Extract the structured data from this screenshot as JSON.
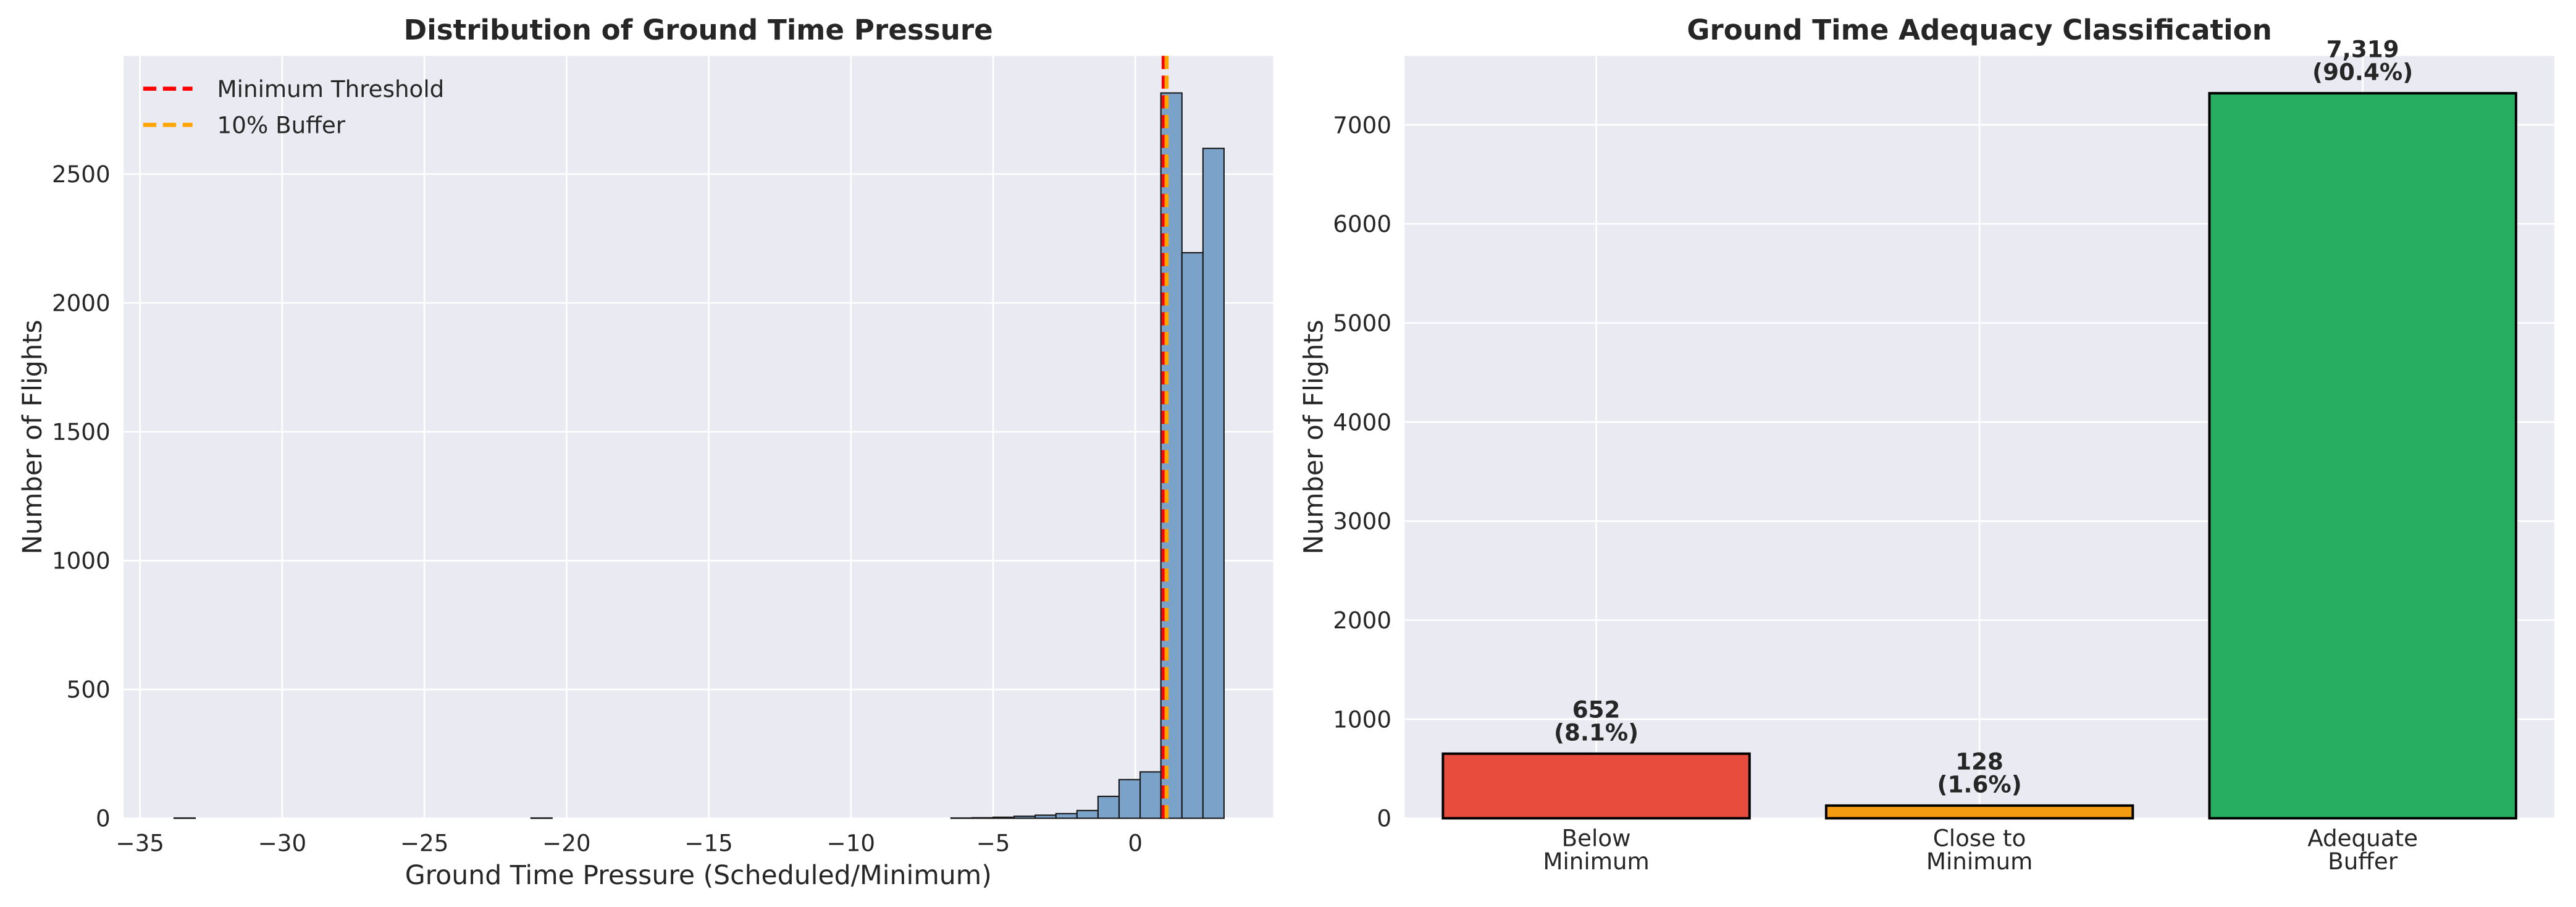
{
  "chart_data": [
    {
      "type": "histogram",
      "title": "Distribution of Ground Time Pressure",
      "xlabel": "Ground Time Pressure (Scheduled/Minimum)",
      "ylabel": "Number of Flights",
      "bins": [
        -33.8,
        -33.06,
        -32.32,
        -31.58,
        -30.85,
        -30.11,
        -29.37,
        -28.63,
        -27.89,
        -27.15,
        -26.42,
        -25.68,
        -24.94,
        -24.2,
        -23.46,
        -22.72,
        -21.99,
        -21.25,
        -20.51,
        -19.77,
        -19.03,
        -18.29,
        -17.56,
        -16.82,
        -16.08,
        -15.34,
        -14.6,
        -13.86,
        -13.12,
        -12.39,
        -11.65,
        -10.91,
        -10.17,
        -9.43,
        -8.69,
        -7.96,
        -7.22,
        -6.48,
        -5.74,
        -5.0,
        -4.26,
        -3.52,
        -2.79,
        -2.05,
        -1.31,
        -0.57,
        0.17,
        0.9,
        1.64,
        2.38,
        3.12
      ],
      "counts": [
        1,
        0,
        0,
        0,
        0,
        0,
        0,
        0,
        0,
        0,
        0,
        0,
        0,
        0,
        0,
        0,
        0,
        1,
        0,
        0,
        0,
        0,
        0,
        0,
        0,
        0,
        0,
        0,
        0,
        0,
        0,
        0,
        0,
        0,
        0,
        0,
        0,
        1,
        2,
        4,
        8,
        12,
        18,
        30,
        85,
        150,
        180,
        2815,
        2195,
        2600
      ],
      "color": "#7ba2c8",
      "vlines": [
        {
          "name": "Minimum Threshold",
          "x": 1.0,
          "color": "#ff0000"
        },
        {
          "name": "10% Buffer",
          "x": 1.1,
          "color": "#ffa500"
        }
      ],
      "legend": "upper left",
      "xlim": [
        -35.58,
        4.85
      ],
      "xticks": [
        {
          "value": -35,
          "label": "−35"
        },
        {
          "value": -30,
          "label": "−30"
        },
        {
          "value": -25,
          "label": "−25"
        },
        {
          "value": -20,
          "label": "−20"
        },
        {
          "value": -15,
          "label": "−15"
        },
        {
          "value": -10,
          "label": "−10"
        },
        {
          "value": -5,
          "label": "−5"
        },
        0
      ],
      "ylim": [
        0,
        2959
      ],
      "yticks": [
        0,
        500,
        1000,
        1500,
        2000,
        2500
      ],
      "grid": true
    },
    {
      "type": "bar",
      "title": "Ground Time Adequacy Classification",
      "ylabel": "Number of Flights",
      "categories": [
        "Below\nMinimum",
        "Close to\nMinimum",
        "Adequate\nBuffer"
      ],
      "values": [
        652,
        128,
        7319
      ],
      "value_labels": [
        "652\n(8.1%)",
        "128\n(1.6%)",
        "7,319\n(90.4%)"
      ],
      "colors": [
        "#e74c3c",
        "#f39c12",
        "#27ae60"
      ],
      "ylim": [
        0,
        7696
      ],
      "yticks": [
        0,
        1000,
        2000,
        3000,
        4000,
        5000,
        6000,
        7000
      ],
      "grid": true
    }
  ]
}
